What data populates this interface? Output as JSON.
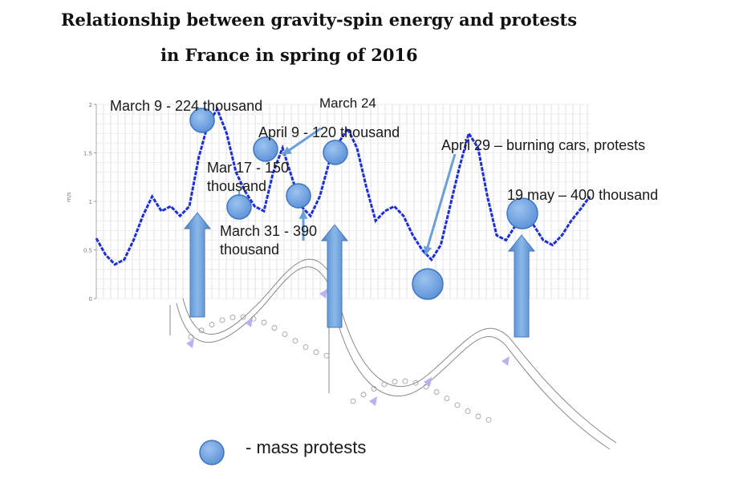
{
  "title_line1": "Relationship between gravity-spin energy and protests",
  "title_line2": "in France in spring of 2016",
  "chart_data": {
    "type": "line",
    "ylabel": "m/s",
    "y_ticks": [
      "2",
      "1.5",
      "1",
      "0.5",
      "0"
    ],
    "ylim": [
      0,
      2
    ],
    "grid": true,
    "series_color": "#1f2fd8",
    "marker_color": "#6aa0e2",
    "arrow_color": "#6a9fd8",
    "values": [
      0.62,
      0.45,
      0.35,
      0.4,
      0.6,
      0.85,
      1.05,
      0.9,
      0.95,
      0.85,
      0.95,
      1.45,
      1.8,
      1.95,
      1.7,
      1.3,
      1.1,
      0.95,
      0.9,
      1.3,
      1.55,
      1.25,
      0.95,
      0.85,
      1.05,
      1.4,
      1.6,
      1.75,
      1.55,
      1.15,
      0.8,
      0.9,
      0.95,
      0.85,
      0.65,
      0.5,
      0.4,
      0.55,
      0.95,
      1.35,
      1.7,
      1.55,
      1.05,
      0.65,
      0.6,
      0.75,
      0.9,
      0.75,
      0.6,
      0.55,
      0.65,
      0.8,
      0.92,
      1.05
    ],
    "annotations": [
      {
        "text": "March 9 - 224 thousand"
      },
      {
        "text": "March 24"
      },
      {
        "text": "April 9 - 120 thousand"
      },
      {
        "text": "Mar 17 - 150"
      },
      {
        "text": "thousand"
      },
      {
        "text": "April 29 – burning cars, protests"
      },
      {
        "text": "19 may – 400 thousand"
      },
      {
        "text": "March 31 - 390"
      },
      {
        "text": "thousand"
      }
    ]
  },
  "legend": {
    "text": "- mass protests"
  }
}
